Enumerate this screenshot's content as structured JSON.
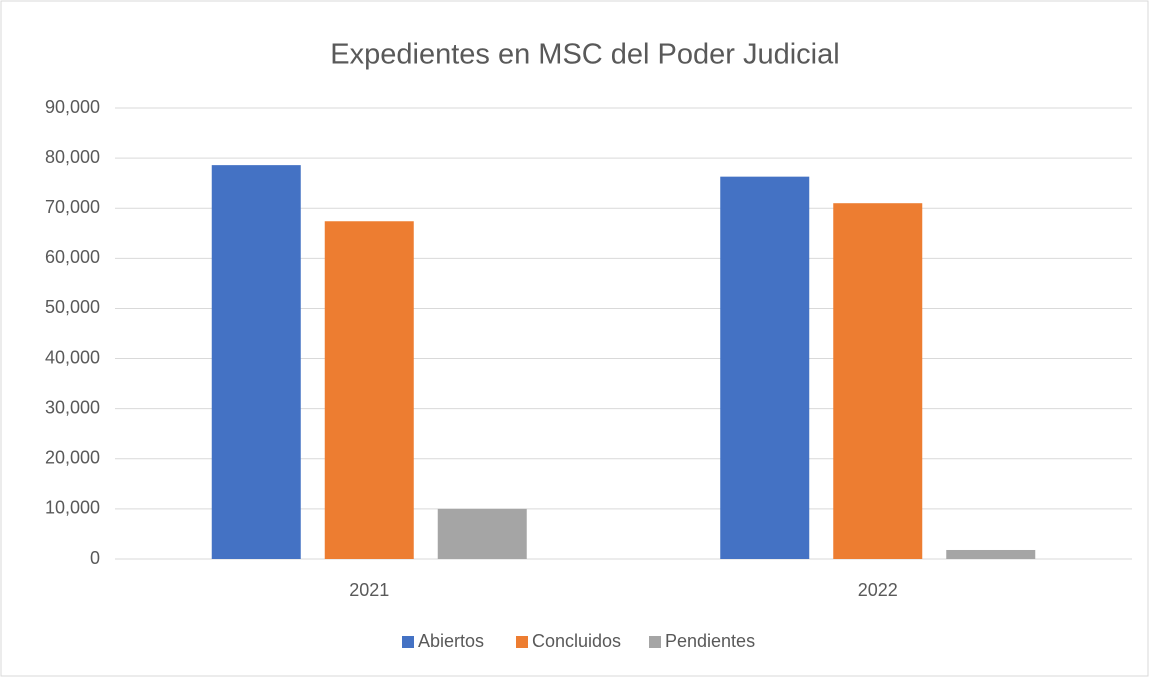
{
  "chart_data": {
    "type": "bar",
    "title": "Expedientes en MSC del Poder Judicial",
    "categories": [
      "2021",
      "2022"
    ],
    "series": [
      {
        "name": "Abiertos",
        "color": "#4472c4",
        "values": [
          78600,
          76300
        ]
      },
      {
        "name": "Concluidos",
        "color": "#ed7d31",
        "values": [
          67400,
          71000
        ]
      },
      {
        "name": "Pendientes",
        "color": "#a5a5a5",
        "values": [
          10000,
          1800
        ]
      }
    ],
    "ylim": [
      0,
      90000
    ],
    "yticks": [
      0,
      {
        "value": 10000,
        "label": "10,000"
      },
      {
        "value": 20000,
        "label": "20,000"
      },
      {
        "value": 30000,
        "label": "30,000"
      },
      {
        "value": 40000,
        "label": "40,000"
      },
      {
        "value": 50000,
        "label": "50,000"
      },
      {
        "value": 60000,
        "label": "60,000"
      },
      {
        "value": 70000,
        "label": "70,000"
      },
      {
        "value": 80000,
        "label": "80,000"
      },
      {
        "value": 90000,
        "label": "90,000"
      }
    ],
    "grid": true,
    "legend": "bottom"
  }
}
